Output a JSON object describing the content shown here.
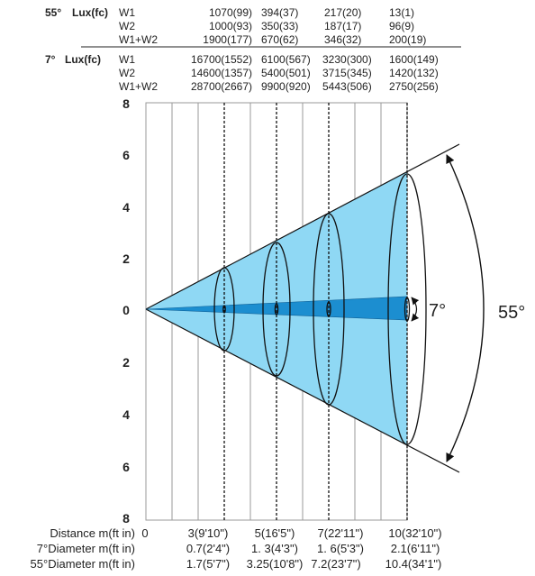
{
  "colors": {
    "wide_beam": "#8fd8f4",
    "narrow_beam": "#1c8ed0",
    "grid": "#999999",
    "line": "#111111"
  },
  "lux_tables": [
    {
      "angle_label": "55°",
      "unit_label": "Lux(fc)",
      "rows": [
        {
          "name": "W1",
          "values": [
            "1070(99)",
            "394(37)",
            "217(20)",
            "13(1)"
          ]
        },
        {
          "name": "W2",
          "values": [
            "1000(93)",
            "350(33)",
            "187(17)",
            "96(9)"
          ]
        },
        {
          "name": "W1+W2",
          "values": [
            "1900(177)",
            "670(62)",
            "346(32)",
            "200(19)"
          ]
        }
      ]
    },
    {
      "angle_label": "7°",
      "unit_label": "Lux(fc)",
      "rows": [
        {
          "name": "W1",
          "values": [
            "16700(1552)",
            "6100(567)",
            "3230(300)",
            "1600(149)"
          ]
        },
        {
          "name": "W2",
          "values": [
            "14600(1357)",
            "5400(501)",
            "3715(345)",
            "1420(132)"
          ]
        },
        {
          "name": "W1+W2",
          "values": [
            "28700(2667)",
            "9900(920)",
            "5443(506)",
            "2750(256)"
          ]
        }
      ]
    }
  ],
  "y_axis_ticks": [
    "8",
    "6",
    "4",
    "2",
    "0",
    "2",
    "4",
    "6",
    "8"
  ],
  "bottom_rows": [
    {
      "label": "Distance  m(ft in)",
      "values": [
        "0",
        "3(9'10\")",
        "5(16'5\")",
        "7(22'11\")",
        "10(32'10\")"
      ]
    },
    {
      "label": "7°Diameter  m(ft in)",
      "values": [
        "0.7(2'4\")",
        "1. 3(4'3\")",
        "1. 6(5'3\")",
        "2.1(6'11\")"
      ]
    },
    {
      "label": "55°Diameter  m(ft in)",
      "values": [
        "1.7(5'7\")",
        "3.25(10'8\")",
        "7.2(23'7\")",
        "10.4(34'1\")"
      ]
    }
  ],
  "beam_labels": {
    "narrow": "7°",
    "wide": "55°"
  }
}
